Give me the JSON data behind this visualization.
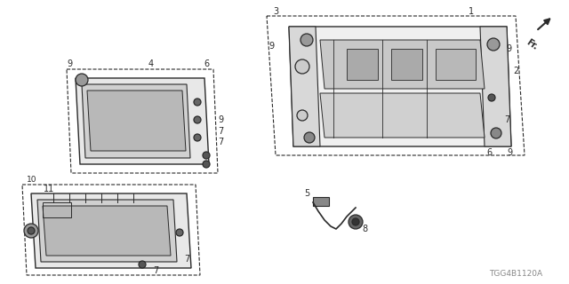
{
  "bg_color": "#ffffff",
  "line_color": "#2a2a2a",
  "diagram_code": "TGG4B1120A",
  "fig_w": 6.4,
  "fig_h": 3.2,
  "dpi": 100
}
